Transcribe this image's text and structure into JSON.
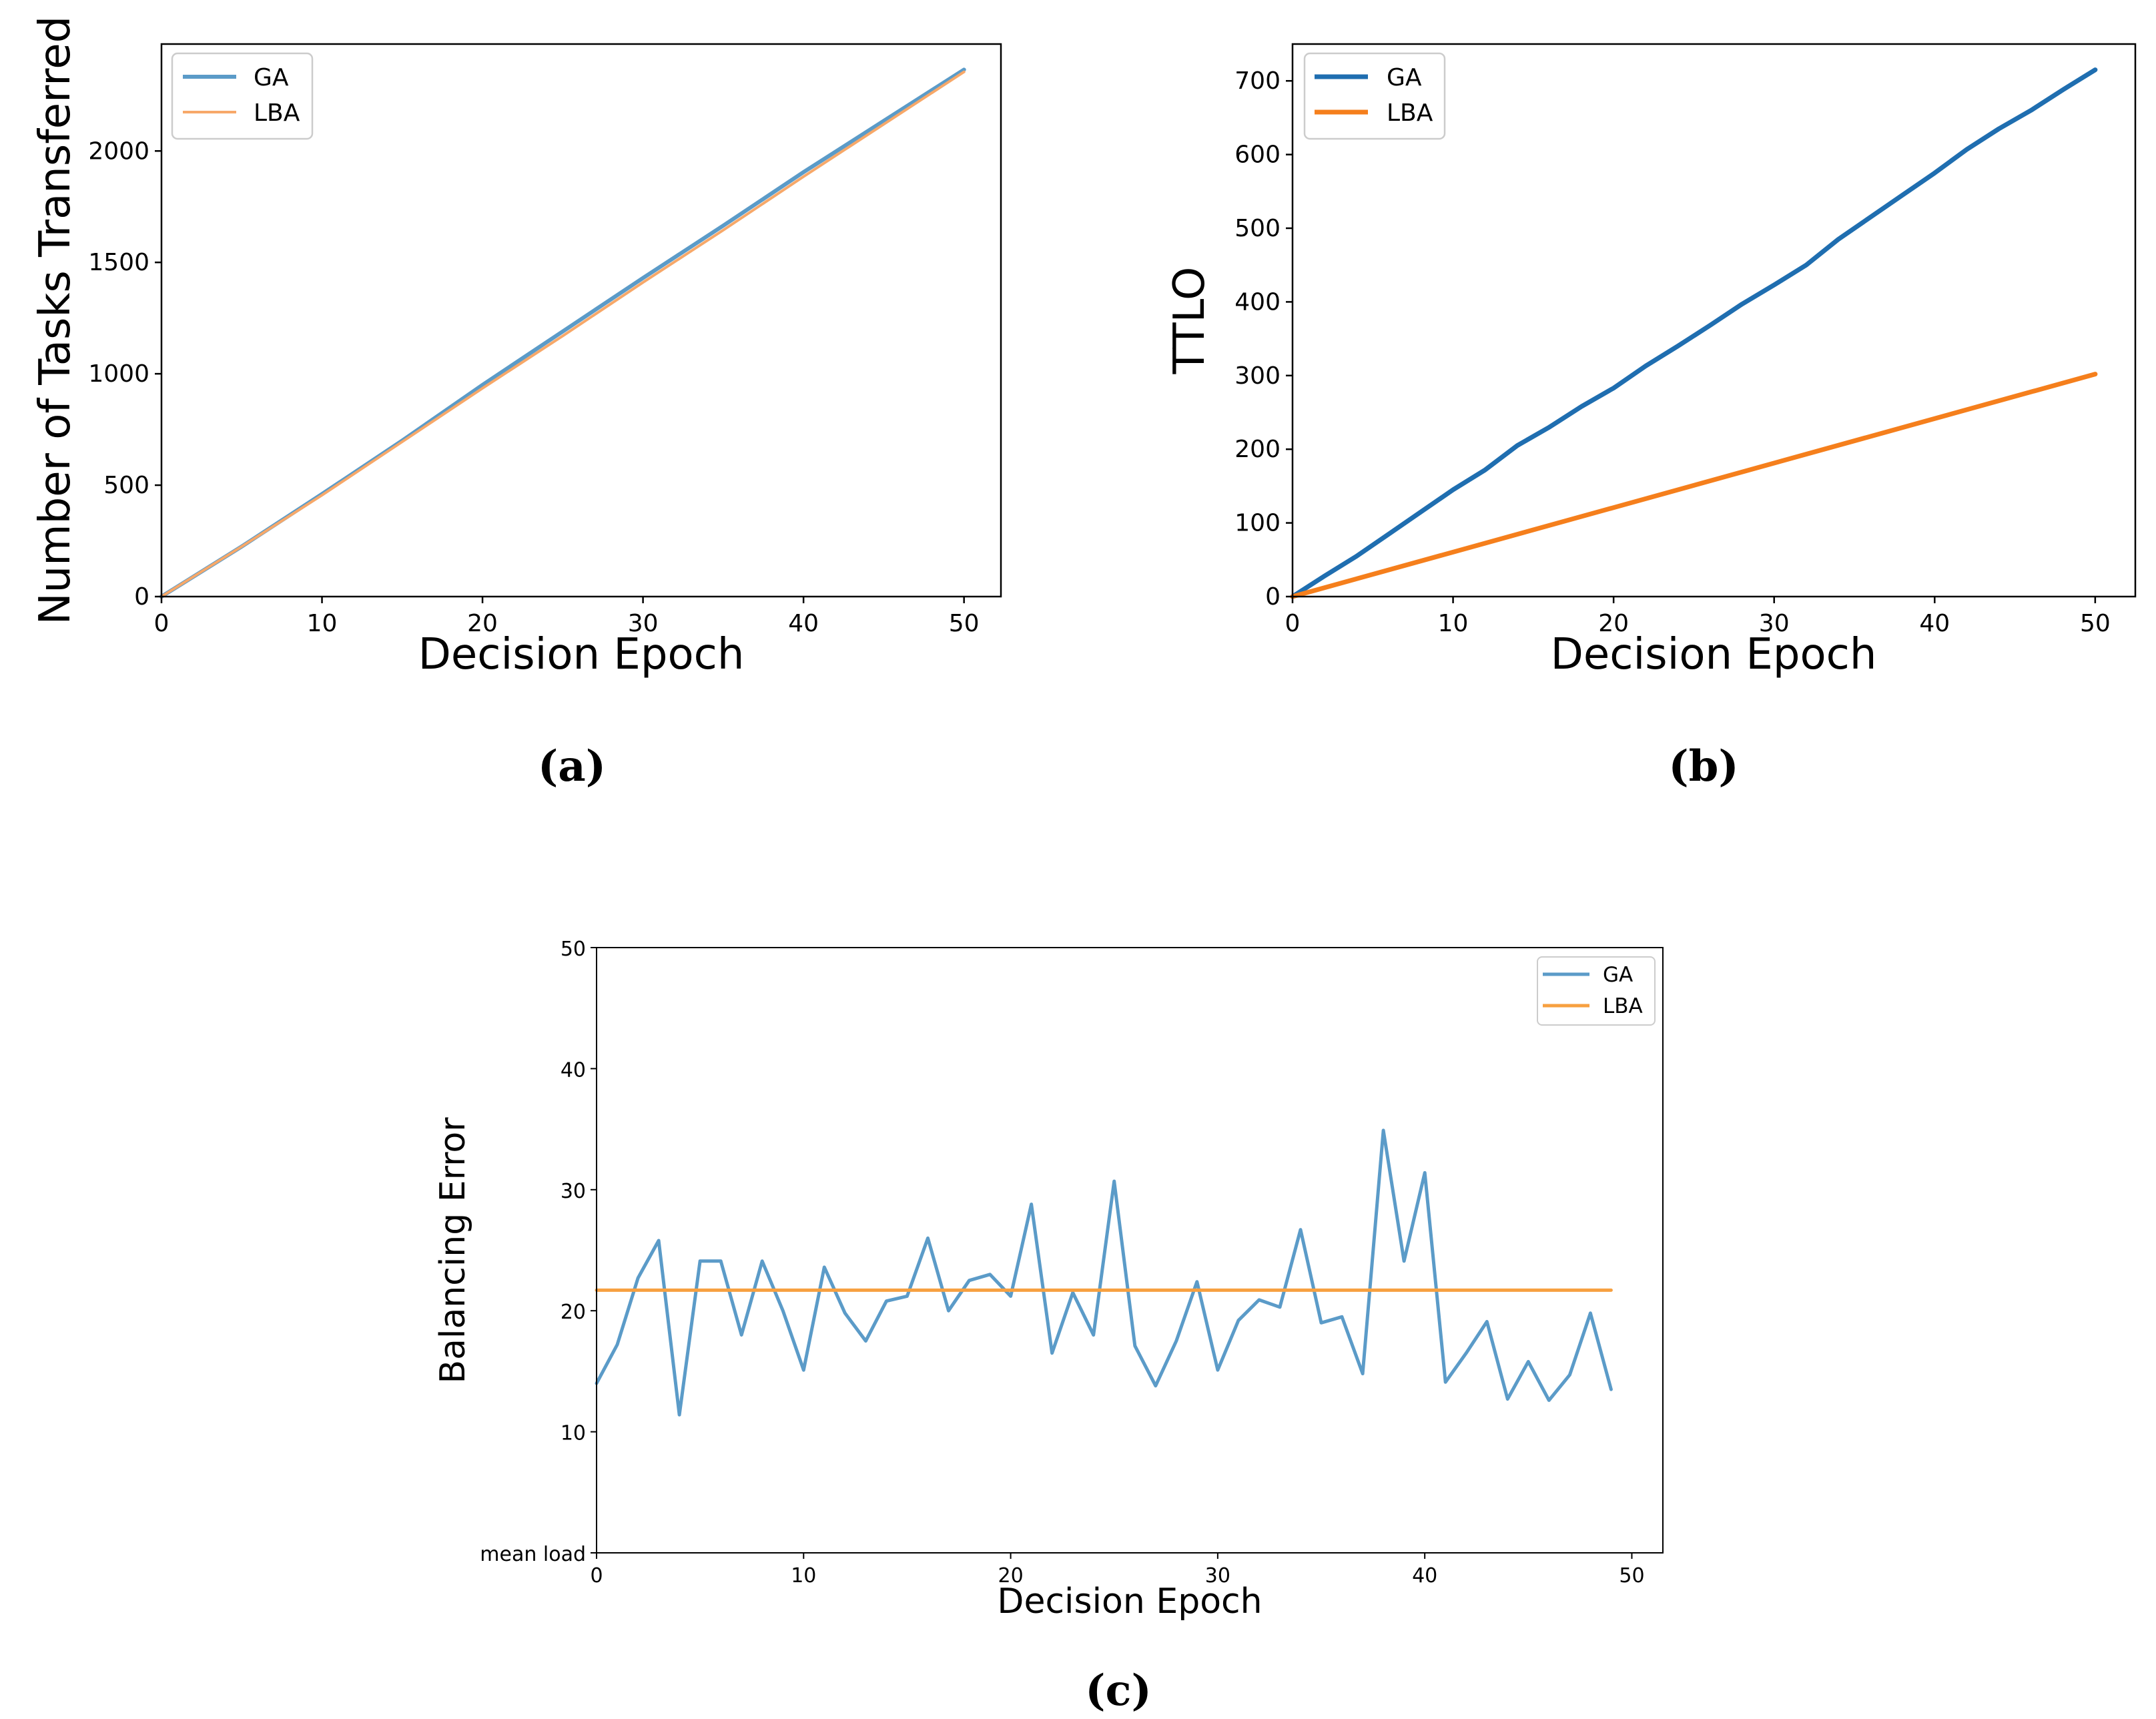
{
  "chart_data": [
    {
      "type": "line",
      "panel": "(a)",
      "title": "",
      "xlabel": "Decision Epoch",
      "ylabel": "Number of Tasks Transferred",
      "xlim": [
        0,
        52.3
      ],
      "ylim": [
        0,
        2480
      ],
      "xticks": [
        0,
        10,
        20,
        30,
        40,
        50
      ],
      "yticks": [
        0,
        500,
        1000,
        1500,
        2000
      ],
      "legend": "top-left",
      "colors": {
        "GA": "#5b9bc8",
        "LBA": "#f7a869"
      },
      "series": [
        {
          "name": "GA",
          "x": [
            0,
            5,
            10,
            15,
            20,
            25,
            30,
            35,
            40,
            45,
            50
          ],
          "y": [
            0,
            225,
            460,
            700,
            950,
            1190,
            1430,
            1665,
            1905,
            2135,
            2365
          ]
        },
        {
          "name": "LBA",
          "x": [
            0,
            5,
            10,
            15,
            20,
            25,
            30,
            35,
            40,
            45,
            50
          ],
          "y": [
            0,
            225,
            455,
            695,
            935,
            1170,
            1410,
            1645,
            1885,
            2120,
            2355
          ]
        }
      ]
    },
    {
      "type": "line",
      "panel": "(b)",
      "title": "",
      "xlabel": "Decision Epoch",
      "ylabel": "TTLO",
      "xlim": [
        0,
        52.5
      ],
      "ylim": [
        0,
        750
      ],
      "xticks": [
        0,
        10,
        20,
        30,
        40,
        50
      ],
      "yticks": [
        0,
        100,
        200,
        300,
        400,
        500,
        600,
        700
      ],
      "legend": "top-left",
      "colors": {
        "GA": "#1f6eb0",
        "LBA": "#f57f1c"
      },
      "series": [
        {
          "name": "GA",
          "x": [
            0,
            2,
            4,
            6,
            8,
            10,
            12,
            14,
            16,
            18,
            20,
            22,
            24,
            26,
            28,
            30,
            32,
            34,
            36,
            38,
            40,
            42,
            44,
            46,
            48,
            50
          ],
          "y": [
            0,
            28,
            55,
            85,
            115,
            145,
            172,
            205,
            230,
            258,
            283,
            313,
            340,
            368,
            397,
            423,
            450,
            485,
            515,
            545,
            575,
            607,
            635,
            660,
            688,
            715
          ]
        },
        {
          "name": "LBA",
          "x": [
            0,
            50
          ],
          "y": [
            0,
            302
          ]
        }
      ]
    },
    {
      "type": "line",
      "panel": "(c)",
      "title": "",
      "xlabel": "Decision Epoch",
      "ylabel": "Balancing Error",
      "xlim": [
        0,
        51.5
      ],
      "ylim": [
        0,
        50
      ],
      "xticks": [
        0,
        10,
        20,
        30,
        40,
        50
      ],
      "yticks": [
        0,
        10,
        20,
        30,
        40,
        50
      ],
      "ytick_labels": [
        "mean load",
        "10",
        "20",
        "30",
        "40",
        "50"
      ],
      "legend": "top-right",
      "colors": {
        "GA": "#5b9bc8",
        "LBA": "#f7a040"
      },
      "series": [
        {
          "name": "GA",
          "x": [
            0,
            1,
            2,
            3,
            4,
            5,
            6,
            7,
            8,
            9,
            10,
            11,
            12,
            13,
            14,
            15,
            16,
            17,
            18,
            19,
            20,
            21,
            22,
            23,
            24,
            25,
            26,
            27,
            28,
            29,
            30,
            31,
            32,
            33,
            34,
            35,
            36,
            37,
            38,
            39,
            40,
            41,
            42,
            43,
            44,
            45,
            46,
            47,
            48,
            49
          ],
          "y": [
            14.0,
            17.2,
            22.7,
            25.8,
            11.4,
            24.1,
            24.1,
            18.0,
            24.1,
            20.0,
            15.1,
            23.6,
            19.8,
            17.5,
            20.8,
            21.2,
            26.0,
            20.0,
            22.5,
            23.0,
            21.2,
            28.8,
            16.5,
            21.5,
            18.0,
            30.7,
            17.1,
            13.8,
            17.5,
            22.4,
            15.1,
            19.2,
            20.9,
            20.3,
            26.7,
            19.0,
            19.5,
            14.8,
            34.9,
            24.1,
            31.4,
            14.1,
            16.5,
            19.1,
            12.7,
            15.8,
            12.6,
            14.7,
            19.8,
            13.5
          ]
        },
        {
          "name": "LBA",
          "x": [
            0,
            49
          ],
          "y": [
            21.7,
            21.7
          ]
        }
      ]
    }
  ],
  "captions": [
    "(a)",
    "(b)",
    "(c)"
  ]
}
